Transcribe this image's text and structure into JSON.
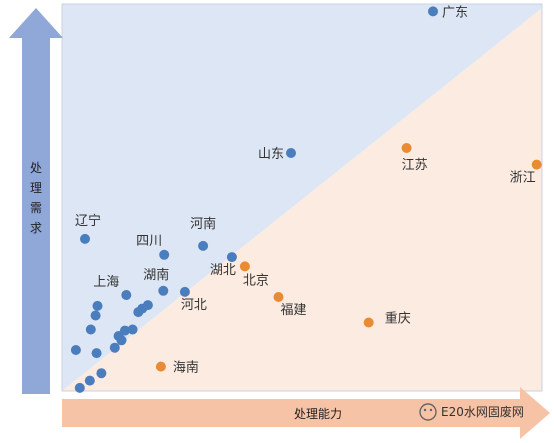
{
  "chart_data": {
    "type": "scatter",
    "title": "",
    "xlabel": "处理能力",
    "ylabel": "处理需求",
    "xlim": [
      0,
      100
    ],
    "ylim": [
      0,
      100
    ],
    "grid": false,
    "colors": {
      "blue_region": "#dde6f4",
      "orange_region": "#fcebe1",
      "blue_point": "#4a7dbd",
      "orange_point": "#e98b32",
      "axis_arrow": "#8fa8d8",
      "x_arrow": "#f7c3a6"
    },
    "series": [
      {
        "color": "blue",
        "points": [
          {
            "label": "广东",
            "x": 77.3,
            "y": 98.1
          },
          {
            "label": "山东",
            "x": 47.7,
            "y": 61.5
          },
          {
            "label": "辽宁",
            "x": 4.8,
            "y": 39.3
          },
          {
            "label": "四川",
            "x": 21.3,
            "y": 35.2
          },
          {
            "label": "河南",
            "x": 29.4,
            "y": 37.5
          },
          {
            "label": "湖北",
            "x": 35.4,
            "y": 34.6
          },
          {
            "label": "上海",
            "x": 13.4,
            "y": 24.8
          },
          {
            "label": "湖南",
            "x": 21.1,
            "y": 25.9
          },
          {
            "label": "河北",
            "x": 25.6,
            "y": 25.6
          },
          {
            "label": "",
            "x": 17.9,
            "y": 22.2
          },
          {
            "label": "",
            "x": 16.7,
            "y": 21.3
          },
          {
            "label": "",
            "x": 7.4,
            "y": 22.0
          },
          {
            "label": "",
            "x": 7.0,
            "y": 19.5
          },
          {
            "label": "",
            "x": 15.9,
            "y": 20.4
          },
          {
            "label": "",
            "x": 6.0,
            "y": 15.9
          },
          {
            "label": "",
            "x": 14.7,
            "y": 15.9
          },
          {
            "label": "",
            "x": 13.1,
            "y": 15.6
          },
          {
            "label": "",
            "x": 11.8,
            "y": 14.2
          },
          {
            "label": "",
            "x": 12.4,
            "y": 13.1
          },
          {
            "label": "",
            "x": 11.0,
            "y": 11.2
          },
          {
            "label": "",
            "x": 2.9,
            "y": 10.6
          },
          {
            "label": "",
            "x": 7.2,
            "y": 9.8
          },
          {
            "label": "",
            "x": 8.2,
            "y": 4.6
          },
          {
            "label": "",
            "x": 5.8,
            "y": 2.7
          },
          {
            "label": "",
            "x": 3.7,
            "y": 0.8
          }
        ]
      },
      {
        "color": "orange",
        "points": [
          {
            "label": "江苏",
            "x": 71.8,
            "y": 62.8
          },
          {
            "label": "浙江",
            "x": 98.9,
            "y": 58.5
          },
          {
            "label": "北京",
            "x": 38.1,
            "y": 32.2
          },
          {
            "label": "福建",
            "x": 45.1,
            "y": 24.3
          },
          {
            "label": "重庆",
            "x": 63.9,
            "y": 17.7
          },
          {
            "label": "海南",
            "x": 20.6,
            "y": 6.3
          }
        ]
      }
    ]
  },
  "watermark": {
    "text": "E20水网固废网"
  }
}
